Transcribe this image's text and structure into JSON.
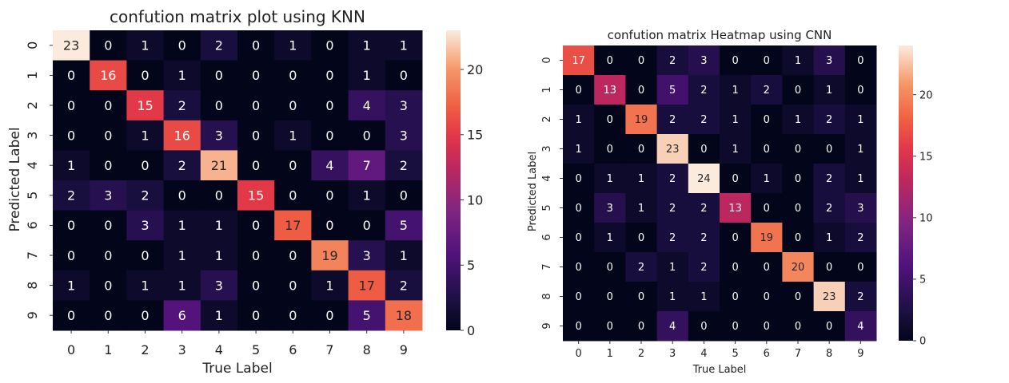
{
  "chart_data": [
    {
      "type": "heatmap",
      "title": "confution matrix plot using KNN",
      "xlabel": "True Label",
      "ylabel": "Predicted Label",
      "x_categories": [
        "0",
        "1",
        "2",
        "3",
        "4",
        "5",
        "6",
        "7",
        "8",
        "9"
      ],
      "y_categories": [
        "0",
        "1",
        "2",
        "3",
        "4",
        "5",
        "6",
        "7",
        "8",
        "9"
      ],
      "matrix": [
        [
          23,
          0,
          1,
          0,
          2,
          0,
          1,
          0,
          1,
          1
        ],
        [
          0,
          16,
          0,
          1,
          0,
          0,
          0,
          0,
          1,
          0
        ],
        [
          0,
          0,
          15,
          2,
          0,
          0,
          0,
          0,
          4,
          3
        ],
        [
          0,
          0,
          1,
          16,
          3,
          0,
          1,
          0,
          0,
          3
        ],
        [
          1,
          0,
          0,
          2,
          21,
          0,
          0,
          4,
          7,
          2
        ],
        [
          2,
          3,
          2,
          0,
          0,
          15,
          0,
          0,
          1,
          0
        ],
        [
          0,
          0,
          3,
          1,
          1,
          0,
          17,
          0,
          0,
          5
        ],
        [
          0,
          0,
          0,
          1,
          1,
          0,
          0,
          19,
          3,
          1
        ],
        [
          1,
          0,
          1,
          1,
          3,
          0,
          0,
          1,
          17,
          2
        ],
        [
          0,
          0,
          0,
          6,
          1,
          0,
          0,
          0,
          5,
          18
        ]
      ],
      "colorbar": {
        "ticks": [
          0,
          5,
          10,
          15,
          20
        ],
        "range": [
          0,
          23
        ]
      },
      "colormap": "rocket"
    },
    {
      "type": "heatmap",
      "title": "confution matrix Heatmap using CNN",
      "xlabel": "True Label",
      "ylabel": "Predicted Label",
      "x_categories": [
        "0",
        "1",
        "2",
        "3",
        "4",
        "5",
        "6",
        "7",
        "8",
        "9"
      ],
      "y_categories": [
        "0",
        "1",
        "2",
        "3",
        "4",
        "5",
        "6",
        "7",
        "8",
        "9"
      ],
      "matrix": [
        [
          17,
          0,
          0,
          2,
          3,
          0,
          0,
          1,
          3,
          0
        ],
        [
          0,
          13,
          0,
          5,
          2,
          1,
          2,
          0,
          1,
          0
        ],
        [
          1,
          0,
          19,
          2,
          2,
          1,
          0,
          1,
          2,
          1
        ],
        [
          1,
          0,
          0,
          23,
          0,
          1,
          0,
          0,
          0,
          1
        ],
        [
          0,
          1,
          1,
          2,
          24,
          0,
          1,
          0,
          2,
          1
        ],
        [
          0,
          3,
          1,
          2,
          2,
          13,
          0,
          0,
          2,
          3
        ],
        [
          0,
          1,
          0,
          2,
          2,
          0,
          19,
          0,
          1,
          2
        ],
        [
          0,
          0,
          2,
          1,
          2,
          0,
          0,
          20,
          0,
          0
        ],
        [
          0,
          0,
          0,
          1,
          1,
          0,
          0,
          0,
          23,
          2
        ],
        [
          0,
          0,
          0,
          4,
          0,
          0,
          0,
          0,
          0,
          4
        ]
      ],
      "colorbar": {
        "ticks": [
          0,
          5,
          10,
          15,
          20
        ],
        "range": [
          0,
          24
        ]
      },
      "colormap": "rocket"
    }
  ]
}
